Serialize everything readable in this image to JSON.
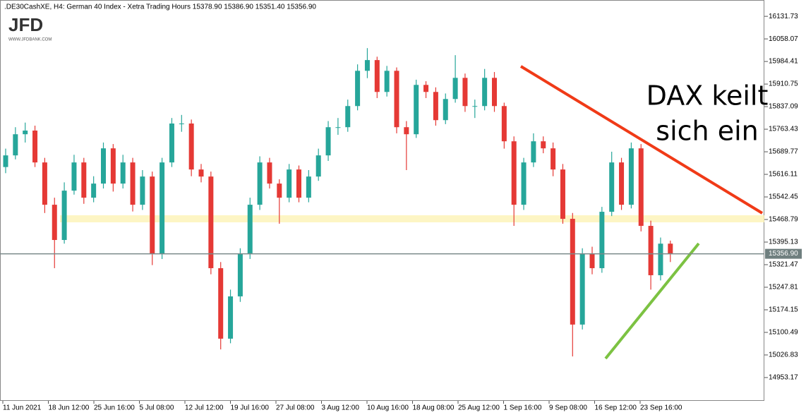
{
  "chart_data": {
    "type": "candlestick",
    "header": ".DE30CashXE, H4:  German 40 Index  - Xetra Trading Hours  15378.90 15386.90 15351.40 15356.90",
    "logo": "JFD",
    "logo_url": "WWW.JFDBANK.COM",
    "annotations": [
      "DAX keilt",
      "sich ein"
    ],
    "up_color": "#26a69a",
    "down_color": "#e53935",
    "ylim": [
      14877,
      16185
    ],
    "yticks": [
      16131.73,
      16058.07,
      15984.41,
      15910.75,
      15837.09,
      15763.43,
      15689.77,
      15616.11,
      15542.45,
      15468.79,
      15395.13,
      15321.47,
      15247.81,
      15174.15,
      15100.49,
      15026.83,
      14953.17
    ],
    "current_price": {
      "value": 15356.9,
      "label": "15356.90"
    },
    "x_labels": [
      "11 Jun 2021",
      "18 Jun 12:00",
      "25 Jun 16:00",
      "5 Jul 08:00",
      "12 Jul 12:00",
      "19 Jul 16:00",
      "27 Jul 08:00",
      "3 Aug 12:00",
      "10 Aug 16:00",
      "18 Aug 08:00",
      "25 Aug 12:00",
      "1 Sep 16:00",
      "9 Sep 08:00",
      "16 Sep 12:00",
      "23 Sep 16:00"
    ],
    "ohlc": [
      [
        15640,
        15700,
        15620,
        15678
      ],
      [
        15678,
        15770,
        15665,
        15747
      ],
      [
        15747,
        15785,
        15720,
        15759
      ],
      [
        15759,
        15775,
        15640,
        15655
      ],
      [
        15655,
        15670,
        15490,
        15517
      ],
      [
        15517,
        15540,
        15310,
        15402
      ],
      [
        15402,
        15590,
        15390,
        15563
      ],
      [
        15563,
        15680,
        15550,
        15655
      ],
      [
        15655,
        15670,
        15520,
        15540
      ],
      [
        15540,
        15610,
        15525,
        15586
      ],
      [
        15586,
        15720,
        15570,
        15701
      ],
      [
        15701,
        15715,
        15560,
        15586
      ],
      [
        15586,
        15680,
        15570,
        15655
      ],
      [
        15655,
        15670,
        15495,
        15517
      ],
      [
        15517,
        15630,
        15500,
        15609
      ],
      [
        15609,
        15625,
        15320,
        15356
      ],
      [
        15356,
        15670,
        15340,
        15655
      ],
      [
        15655,
        15800,
        15640,
        15782
      ],
      [
        15782,
        15810,
        15755,
        15782
      ],
      [
        15782,
        15795,
        15610,
        15632
      ],
      [
        15632,
        15650,
        15590,
        15609
      ],
      [
        15609,
        15625,
        15290,
        15310
      ],
      [
        15310,
        15330,
        15045,
        15080
      ],
      [
        15080,
        15240,
        15065,
        15218
      ],
      [
        15218,
        15375,
        15200,
        15356
      ],
      [
        15356,
        15540,
        15340,
        15517
      ],
      [
        15517,
        15675,
        15500,
        15655
      ],
      [
        15655,
        15670,
        15570,
        15586
      ],
      [
        15586,
        15600,
        15455,
        15540
      ],
      [
        15540,
        15650,
        15525,
        15632
      ],
      [
        15632,
        15645,
        15525,
        15540
      ],
      [
        15540,
        15630,
        15525,
        15609
      ],
      [
        15609,
        15700,
        15595,
        15678
      ],
      [
        15678,
        15790,
        15660,
        15770
      ],
      [
        15770,
        15800,
        15745,
        15770
      ],
      [
        15770,
        15860,
        15755,
        15839
      ],
      [
        15839,
        15975,
        15825,
        15954
      ],
      [
        15954,
        16028,
        15930,
        15989
      ],
      [
        15989,
        16000,
        15865,
        15885
      ],
      [
        15885,
        15970,
        15870,
        15954
      ],
      [
        15954,
        15965,
        15750,
        15770
      ],
      [
        15770,
        15790,
        15630,
        15747
      ],
      [
        15747,
        15925,
        15735,
        15908
      ],
      [
        15908,
        15920,
        15865,
        15885
      ],
      [
        15885,
        15900,
        15775,
        15793
      ],
      [
        15793,
        15880,
        15780,
        15862
      ],
      [
        15862,
        16005,
        15850,
        15931
      ],
      [
        15931,
        15945,
        15820,
        15839
      ],
      [
        15839,
        15860,
        15800,
        15839
      ],
      [
        15839,
        15960,
        15825,
        15931
      ],
      [
        15931,
        15950,
        15820,
        15839
      ],
      [
        15839,
        15850,
        15700,
        15724
      ],
      [
        15724,
        15740,
        15448,
        15517
      ],
      [
        15517,
        15670,
        15500,
        15655
      ],
      [
        15655,
        15750,
        15640,
        15724
      ],
      [
        15724,
        15740,
        15685,
        15701
      ],
      [
        15701,
        15720,
        15610,
        15632
      ],
      [
        15632,
        15650,
        15455,
        15471
      ],
      [
        15471,
        15490,
        15022,
        15126
      ],
      [
        15126,
        15375,
        15110,
        15356
      ],
      [
        15356,
        15380,
        15290,
        15310
      ],
      [
        15310,
        15510,
        15295,
        15494
      ],
      [
        15494,
        15690,
        15480,
        15655
      ],
      [
        15655,
        15670,
        15500,
        15517
      ],
      [
        15517,
        15720,
        15505,
        15701
      ],
      [
        15701,
        15715,
        15430,
        15448
      ],
      [
        15448,
        15465,
        15240,
        15287
      ],
      [
        15287,
        15410,
        15270,
        15390
      ],
      [
        15390,
        15400,
        15330,
        15356.9
      ]
    ]
  }
}
